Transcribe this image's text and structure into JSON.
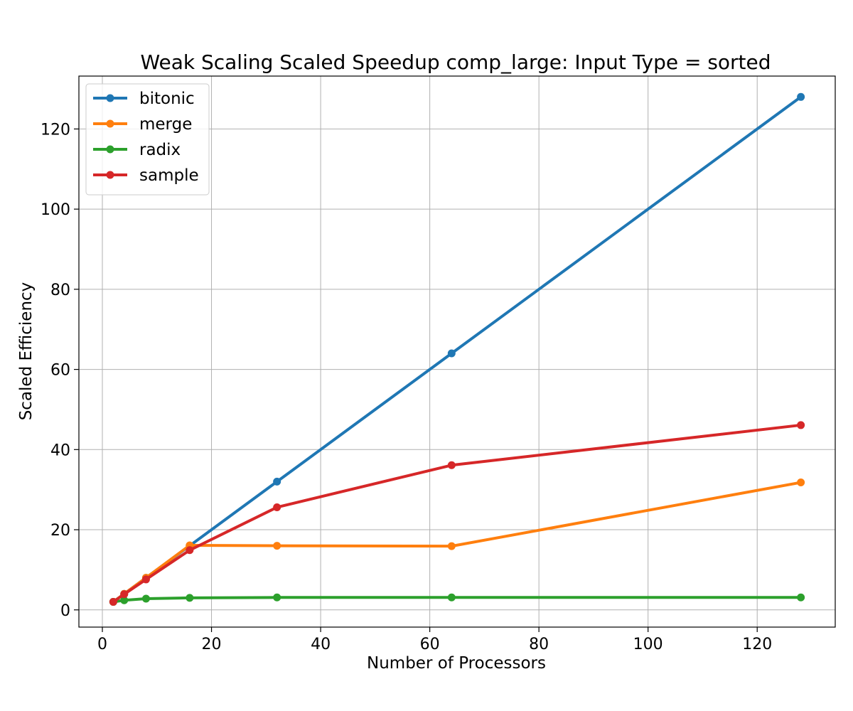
{
  "chart_data": {
    "type": "line",
    "title": "Weak Scaling Scaled Speedup comp_large: Input Type = sorted",
    "xlabel": "Number of Processors",
    "ylabel": "Scaled Efficiency",
    "xlim": [
      -4.3,
      134.3
    ],
    "ylim": [
      -4.3,
      133.2
    ],
    "xticks": [
      0,
      20,
      40,
      60,
      80,
      100,
      120
    ],
    "yticks": [
      0,
      20,
      40,
      60,
      80,
      100,
      120
    ],
    "grid": true,
    "legend_position": "top-left",
    "x": [
      2,
      4,
      8,
      16,
      32,
      64,
      128
    ],
    "series": [
      {
        "name": "bitonic",
        "color": "#1f77b4",
        "values": [
          2.0,
          4.0,
          8.0,
          16.0,
          32.0,
          64.0,
          128.0
        ]
      },
      {
        "name": "merge",
        "color": "#ff7f0e",
        "values": [
          2.0,
          4.0,
          8.0,
          16.1,
          16.0,
          15.9,
          31.8
        ]
      },
      {
        "name": "radix",
        "color": "#2ca02c",
        "values": [
          2.0,
          2.4,
          2.8,
          3.0,
          3.1,
          3.1,
          3.1
        ]
      },
      {
        "name": "sample",
        "color": "#d62728",
        "values": [
          2.0,
          3.9,
          7.6,
          14.9,
          25.6,
          36.1,
          46.1
        ]
      }
    ]
  }
}
